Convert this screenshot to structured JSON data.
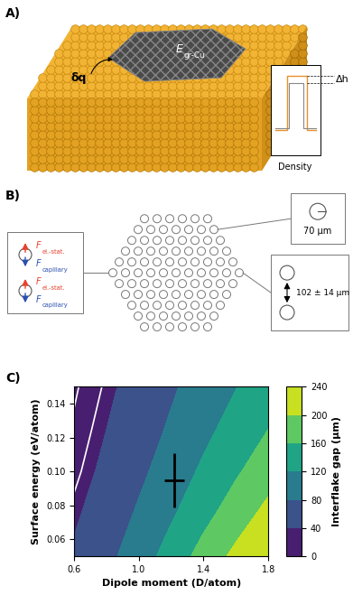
{
  "panel_a": {
    "label": "A)",
    "delta_q": "δq",
    "energy_symbol": "E",
    "energy_subscript": "gr-Cu",
    "delta_h": "Δh",
    "density_label": "Density"
  },
  "panel_b": {
    "label": "B)",
    "force_symbol": "F",
    "electrostatic_subscript": "el.-stat.",
    "capillary_subscript": "capillary",
    "radius_label": "70 µm",
    "spacing_label": "102 ± 14 µm"
  },
  "chart_data": {
    "type": "contour",
    "panel_label": "C)",
    "x_label": "Dipole moment (D/atom)",
    "y_label": "Surface energy (eV/atom)",
    "x": [
      0.6,
      0.8,
      1.0,
      1.2,
      1.4,
      1.6,
      1.8
    ],
    "y": [
      0.05,
      0.075,
      0.1,
      0.125,
      0.15
    ],
    "cells": [
      [
        45,
        70,
        100,
        137,
        175,
        210,
        238
      ],
      [
        35,
        58,
        85,
        115,
        148,
        180,
        212
      ],
      [
        25,
        48,
        72,
        98,
        127,
        155,
        183
      ],
      [
        18,
        40,
        62,
        85,
        110,
        135,
        160
      ],
      [
        12,
        33,
        54,
        75,
        97,
        119,
        141
      ]
    ],
    "xlim": [
      0.6,
      1.8
    ],
    "xticks": [
      0.6,
      {
        "value": 1.0,
        "label": "1.0"
      },
      1.4,
      1.8
    ],
    "ylim": [
      0.05,
      0.15
    ],
    "yticks": [
      0.06,
      0.08,
      {
        "value": 0.1,
        "label": "0.10"
      },
      0.12,
      0.14
    ],
    "colorbar": {
      "label": "Interflake gap (µm)",
      "range": [
        0,
        240
      ],
      "ticks": [
        0,
        40,
        80,
        120,
        160,
        200,
        240
      ]
    },
    "highlight_levels": [
      15,
      30
    ],
    "highlight_color": "white",
    "point": {
      "x": 1.22,
      "y": 0.095,
      "xerr": 0.06,
      "yerr": 0.016,
      "color": "black"
    }
  }
}
